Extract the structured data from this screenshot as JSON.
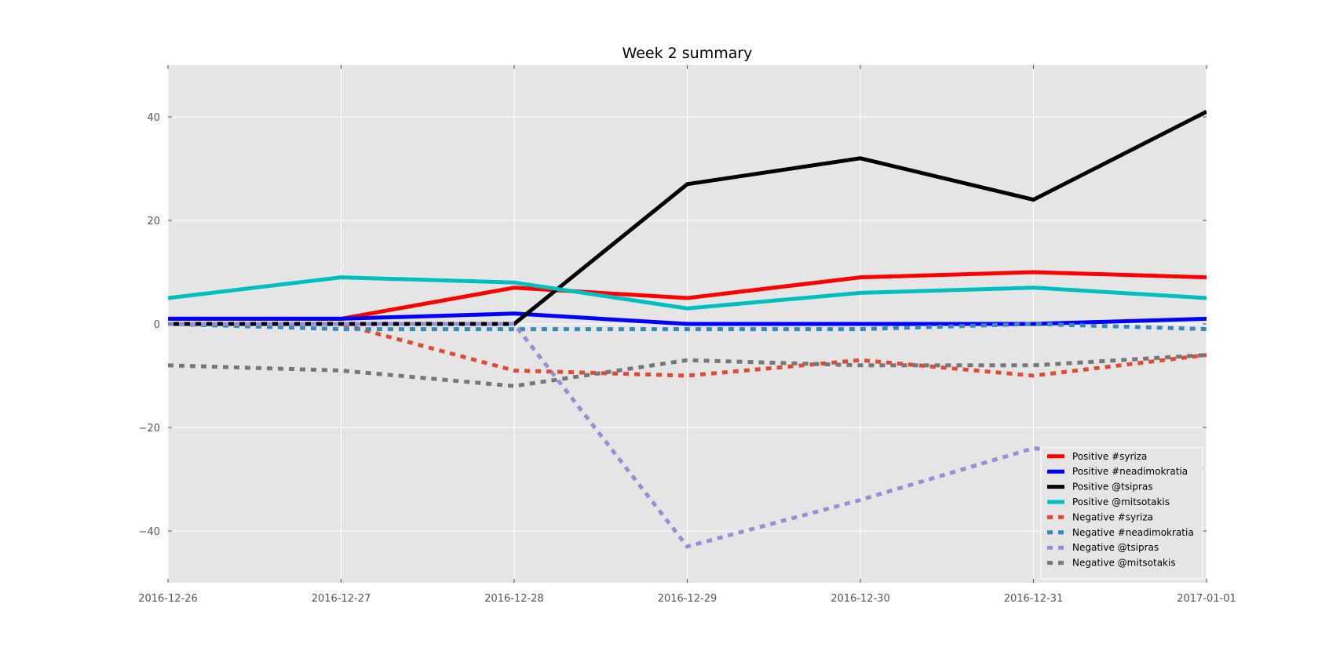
{
  "chart_data": {
    "type": "line",
    "title": "Week 2 summary",
    "xlabel": "",
    "ylabel": "",
    "x": [
      "2016-12-26",
      "2016-12-27",
      "2016-12-28",
      "2016-12-29",
      "2016-12-30",
      "2016-12-31",
      "2017-01-01"
    ],
    "x_tick_labels": [
      "2016-12-26",
      "2016-12-27",
      "2016-12-28",
      "2016-12-29",
      "2016-12-30",
      "2016-12-31",
      "2017-01-01"
    ],
    "ylim": [
      -50,
      50
    ],
    "y_ticks": [
      -40,
      -20,
      0,
      20,
      40
    ],
    "y_tick_labels": [
      "−40",
      "−20",
      "0",
      "20",
      "40"
    ],
    "grid": true,
    "legend_position": "bottom-right",
    "background_color": "#e5e5e5",
    "grid_color": "#ffffff",
    "series": [
      {
        "name": "Positive #syriza",
        "values": [
          1,
          1,
          7,
          5,
          9,
          10,
          9
        ],
        "color": "#ff0000",
        "style": "solid"
      },
      {
        "name": "Positive #neadimokratia",
        "values": [
          1,
          1,
          2,
          0,
          0,
          0,
          1
        ],
        "color": "#0000ff",
        "style": "solid"
      },
      {
        "name": "Positive @tsipras",
        "values": [
          0,
          0,
          0,
          27,
          32,
          24,
          41
        ],
        "color": "#000000",
        "style": "solid"
      },
      {
        "name": "Positive @mitsotakis",
        "values": [
          5,
          9,
          8,
          3,
          6,
          7,
          5
        ],
        "color": "#00bfbf",
        "style": "solid"
      },
      {
        "name": "Negative #syriza",
        "values": [
          0,
          0,
          -9,
          -10,
          -7,
          -10,
          -6
        ],
        "color": "#e24a33",
        "style": "dashed"
      },
      {
        "name": "Negative #neadimokratia",
        "values": [
          0,
          -1,
          -1,
          -1,
          -1,
          0,
          -1
        ],
        "color": "#348abd",
        "style": "dashed"
      },
      {
        "name": "Negative @tsipras",
        "values": [
          0,
          0,
          0,
          -43,
          -34,
          -24,
          -28
        ],
        "color": "#988ed5",
        "style": "dashed"
      },
      {
        "name": "Negative @mitsotakis",
        "values": [
          -8,
          -9,
          -12,
          -7,
          -8,
          -8,
          -6
        ],
        "color": "#777777",
        "style": "dashed"
      }
    ]
  }
}
